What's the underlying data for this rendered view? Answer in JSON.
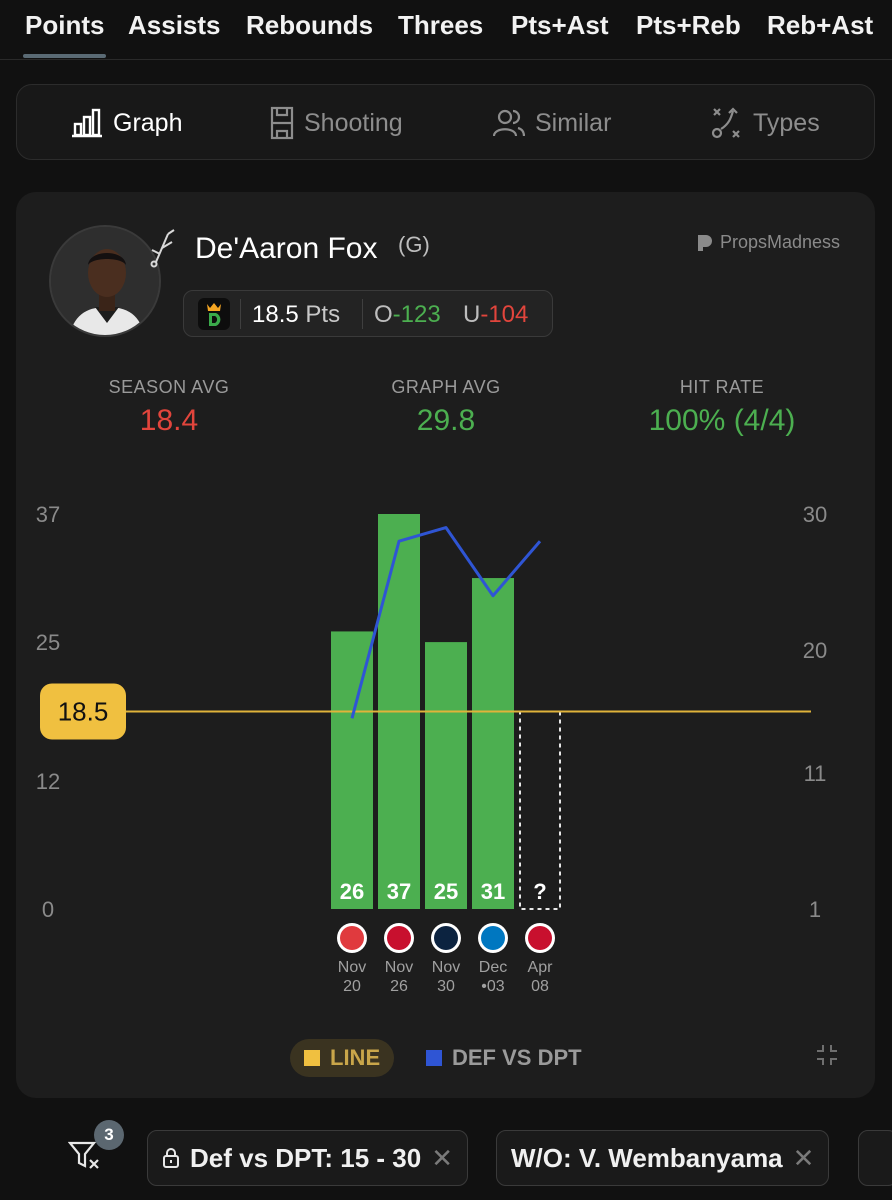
{
  "stat_tabs": [
    "Points",
    "Assists",
    "Rebounds",
    "Threes",
    "Pts+Ast",
    "Pts+Reb",
    "Reb+Ast"
  ],
  "view_tabs": [
    "Graph",
    "Shooting",
    "Similar",
    "Types"
  ],
  "player": {
    "name": "De'Aaron Fox",
    "position": "(G)",
    "brand": "PropsMadness",
    "line_value": "18.5",
    "line_unit": "Pts",
    "over_label": "O",
    "over_odds": "-123",
    "under_label": "U",
    "under_odds": "-104"
  },
  "stats": [
    {
      "label": "SEASON AVG",
      "value": "18.4",
      "color": "#e2453c"
    },
    {
      "label": "GRAPH AVG",
      "value": "29.8",
      "color": "#4caf50"
    },
    {
      "label": "HIT RATE",
      "value": "100% (4/4)",
      "color": "#4caf50"
    }
  ],
  "chart_data": {
    "type": "bar",
    "y_left_ticks": [
      "37",
      "25",
      "12",
      "0"
    ],
    "y_left_range": [
      0,
      37
    ],
    "y_right_ticks": [
      "30",
      "20",
      "11",
      "1"
    ],
    "y_right_range": [
      1,
      30
    ],
    "line_value": 18.5,
    "line_label": "18.5",
    "bars": [
      {
        "value": 26,
        "label": "26",
        "month": "Nov",
        "day": "20",
        "team_color": "#e03a3e"
      },
      {
        "value": 37,
        "label": "37",
        "month": "Nov",
        "day": "26",
        "team_color": "#c8102e"
      },
      {
        "value": 25,
        "label": "25",
        "month": "Nov",
        "day": "30",
        "team_color": "#0c2340"
      },
      {
        "value": 31,
        "label": "31",
        "month": "Dec",
        "day": "•03",
        "team_color": "#0077c0"
      },
      {
        "value": null,
        "label": "?",
        "month": "Apr",
        "day": "08",
        "team_color": "#c8102e"
      }
    ],
    "def_vs_dpt": [
      15,
      28,
      29,
      24,
      28
    ],
    "series": [
      {
        "name": "LINE",
        "color": "#f0c040"
      },
      {
        "name": "DEF VS DPT",
        "color": "#2f55d4"
      }
    ]
  },
  "filters": {
    "count": "3",
    "chips": [
      {
        "label": "Def vs DPT: 15 - 30",
        "locked": true
      },
      {
        "label": "W/O: V. Wembanyama",
        "locked": false
      }
    ]
  }
}
